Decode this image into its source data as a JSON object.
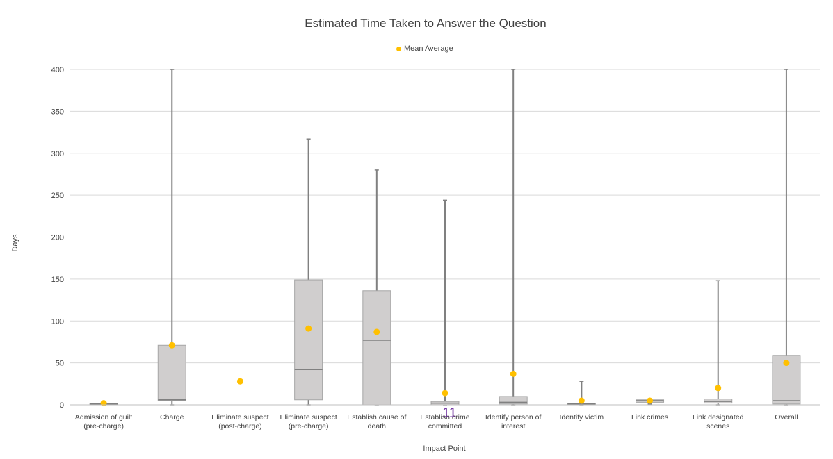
{
  "chart_data": {
    "type": "box",
    "title": "Estimated Time Taken to Answer the Question",
    "xlabel": "Impact Point",
    "ylabel": "Days",
    "ylim": [
      0,
      400
    ],
    "yticks": [
      0,
      50,
      100,
      150,
      200,
      250,
      300,
      350,
      400
    ],
    "grid": true,
    "legend": {
      "position": "top",
      "entries": [
        "Mean Average"
      ]
    },
    "colors": {
      "box_fill": "#d0cece",
      "box_stroke": "#a6a6a6",
      "whisker": "#808080",
      "mean": "#ffc000",
      "grid": "#d9d9d9"
    },
    "categories": [
      "Admission of guilt (pre-charge)",
      "Charge",
      "Eliminate suspect (post-charge)",
      "Eliminate suspect (pre-charge)",
      "Establish cause of death",
      "Establish crime committed",
      "Identify person of interest",
      "Identify victim",
      "Link crimes",
      "Link designated scenes",
      "Overall"
    ],
    "boxes": [
      {
        "min": 0,
        "q1": 0,
        "median": 1,
        "q3": 2,
        "max": 2,
        "mean": 2
      },
      {
        "min": 0,
        "q1": 5,
        "median": 6,
        "q3": 71,
        "max": 400,
        "mean": 71
      },
      {
        "min": null,
        "q1": null,
        "median": null,
        "q3": null,
        "max": null,
        "mean": 28
      },
      {
        "min": 0,
        "q1": 6,
        "median": 42,
        "q3": 149,
        "max": 317,
        "mean": 91
      },
      {
        "min": 0,
        "q1": 0,
        "median": 77,
        "q3": 136,
        "max": 280,
        "mean": 87
      },
      {
        "min": 0,
        "q1": 0,
        "median": 2,
        "q3": 4,
        "max": 244,
        "mean": 14
      },
      {
        "min": 0,
        "q1": 1,
        "median": 3,
        "q3": 10,
        "max": 400,
        "mean": 37
      },
      {
        "min": 0,
        "q1": 0,
        "median": 1,
        "q3": 2,
        "max": 28,
        "mean": 5
      },
      {
        "min": 1,
        "q1": 3,
        "median": 5,
        "q3": 6,
        "max": 7,
        "mean": 5
      },
      {
        "min": 0,
        "q1": 2,
        "median": 4,
        "q3": 7,
        "max": 148,
        "mean": 20
      },
      {
        "min": 0,
        "q1": 1,
        "median": 5,
        "q3": 59,
        "max": 400,
        "mean": 50
      }
    ]
  },
  "overlay": {
    "page_number": "11"
  }
}
